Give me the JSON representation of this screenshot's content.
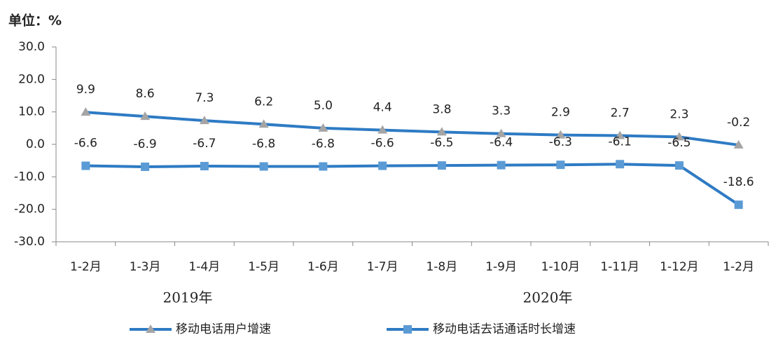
{
  "chart_data": {
    "type": "line",
    "title": "单位：%",
    "categories": [
      "1-2月",
      "1-3月",
      "1-4月",
      "1-5月",
      "1-6月",
      "1-7月",
      "1-8月",
      "1-9月",
      "1-10月",
      "1-11月",
      "1-12月",
      "1-2月"
    ],
    "x_groups": [
      "2019年",
      "2020年"
    ],
    "series": [
      {
        "name": "移动电话用户增速",
        "color": "#2e7bc4",
        "marker": "triangle",
        "marker_color": "#a5a5a5",
        "values": [
          9.9,
          8.6,
          7.3,
          6.2,
          5.0,
          4.4,
          3.8,
          3.3,
          2.9,
          2.7,
          2.3,
          -0.2
        ],
        "value_labels": [
          "9.9",
          "8.6",
          "7.3",
          "6.2",
          "5.0",
          "4.4",
          "3.8",
          "3.3",
          "2.9",
          "2.7",
          "2.3",
          "-0.2"
        ]
      },
      {
        "name": "移动电话去话通话时长增速",
        "color": "#2e7bc4",
        "marker": "square",
        "marker_color": "#5b9bd5",
        "values": [
          -6.6,
          -6.9,
          -6.7,
          -6.8,
          -6.8,
          -6.6,
          -6.5,
          -6.4,
          -6.3,
          -6.1,
          -6.5,
          -18.6
        ]
      }
    ],
    "ylim": [
      -30,
      30
    ],
    "yticks": [
      {
        "value": -30,
        "label": "-30.0"
      },
      {
        "value": -20,
        "label": "-20.0"
      },
      {
        "value": -10,
        "label": "-10.0"
      },
      {
        "value": 0,
        "label": "0.0"
      },
      {
        "value": 10,
        "label": "10.0"
      },
      {
        "value": 20,
        "label": "20.0"
      },
      {
        "value": 30,
        "label": "30.0"
      }
    ],
    "grid": false
  }
}
